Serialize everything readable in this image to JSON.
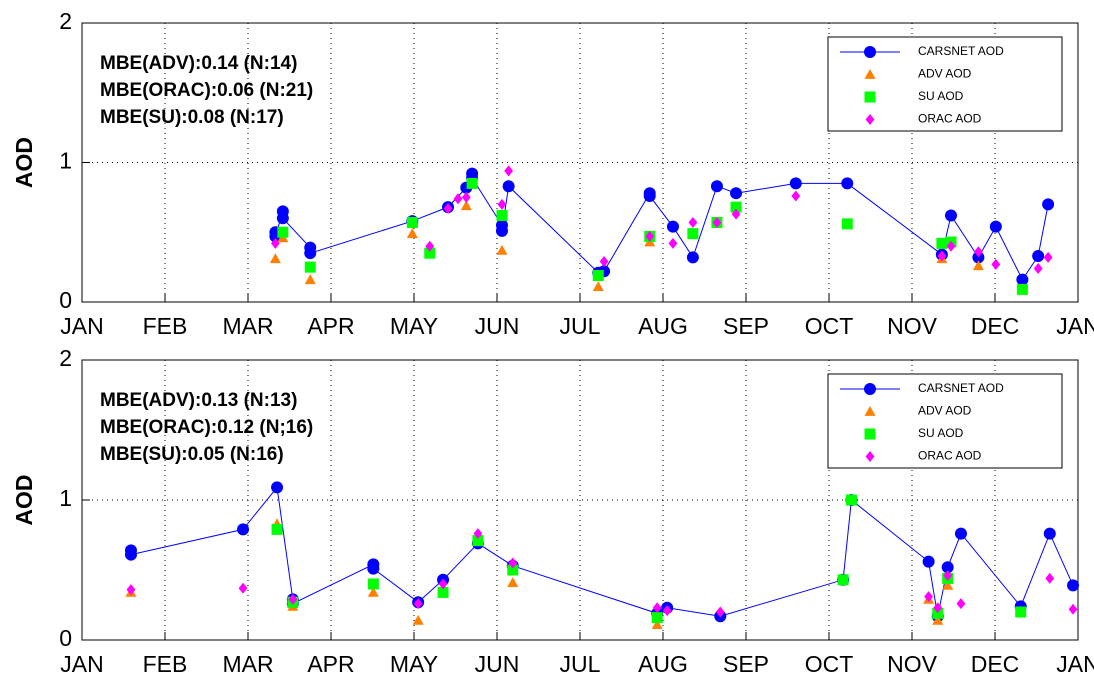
{
  "chart_data": [
    {
      "type": "line",
      "ylabel": "AOD",
      "xlim": [
        0,
        12
      ],
      "ylim": [
        0,
        2
      ],
      "yticks": [
        0,
        1,
        2
      ],
      "xticks": [
        {
          "value": 0,
          "label": "JAN"
        },
        {
          "value": 1,
          "label": "FEB"
        },
        {
          "value": 2,
          "label": "MAR"
        },
        {
          "value": 3,
          "label": "APR"
        },
        {
          "value": 4,
          "label": "MAY"
        },
        {
          "value": 5,
          "label": "JUN"
        },
        {
          "value": 6,
          "label": "JUL"
        },
        {
          "value": 7,
          "label": "AUG"
        },
        {
          "value": 8,
          "label": "SEP"
        },
        {
          "value": 9,
          "label": "OCT"
        },
        {
          "value": 10,
          "label": "NOV"
        },
        {
          "value": 11,
          "label": "DEC"
        },
        {
          "value": 12,
          "label": "JAN"
        }
      ],
      "grid": true,
      "legend": "upper right",
      "annotations": [
        "MBE(ADV):0.14 (N:14)",
        "MBE(ORAC):0.06 (N:21)",
        "MBE(SU):0.08 (N:17)"
      ],
      "series": [
        {
          "name": "CARSNET AOD",
          "color": "#0000ff",
          "marker": "circle",
          "line": true,
          "x": [
            2.33,
            2.33,
            2.42,
            2.42,
            2.75,
            2.75,
            3.98,
            4.41,
            4.63,
            4.7,
            4.7,
            5.06,
            5.06,
            5.14,
            6.22,
            6.29,
            6.84,
            6.84,
            7.12,
            7.36,
            7.65,
            7.88,
            8.6,
            9.22,
            10.36,
            10.47,
            10.8,
            11.01,
            11.33,
            11.52,
            11.64
          ],
          "values": [
            0.5,
            0.47,
            0.65,
            0.6,
            0.39,
            0.35,
            0.58,
            0.68,
            0.82,
            0.92,
            0.89,
            0.55,
            0.51,
            0.83,
            0.21,
            0.22,
            0.78,
            0.76,
            0.54,
            0.32,
            0.83,
            0.78,
            0.85,
            0.85,
            0.34,
            0.62,
            0.32,
            0.54,
            0.16,
            0.33,
            0.7
          ]
        },
        {
          "name": "ADV AOD",
          "color": "#ff8000",
          "marker": "triangle",
          "line": false,
          "x": [
            2.33,
            2.42,
            2.75,
            3.98,
            4.63,
            5.06,
            6.22,
            6.84,
            10.36,
            10.8
          ],
          "values": [
            0.31,
            0.46,
            0.16,
            0.49,
            0.69,
            0.37,
            0.11,
            0.43,
            0.31,
            0.26
          ]
        },
        {
          "name": "SU AOD",
          "color": "#00ff00",
          "marker": "square",
          "line": false,
          "x": [
            2.42,
            2.75,
            3.98,
            4.19,
            4.7,
            5.06,
            6.22,
            6.84,
            7.36,
            7.65,
            7.88,
            9.22,
            10.36,
            10.47,
            11.33
          ],
          "values": [
            0.5,
            0.25,
            0.57,
            0.35,
            0.85,
            0.62,
            0.19,
            0.47,
            0.49,
            0.57,
            0.68,
            0.56,
            0.42,
            0.43,
            0.09
          ]
        },
        {
          "name": "ORAC AOD",
          "color": "#ff00ff",
          "marker": "diamond",
          "line": false,
          "x": [
            2.33,
            4.19,
            4.41,
            4.53,
            4.63,
            5.06,
            5.14,
            6.29,
            6.84,
            7.12,
            7.36,
            7.65,
            7.88,
            8.6,
            10.36,
            10.47,
            10.8,
            11.01,
            11.52,
            11.64
          ],
          "values": [
            0.42,
            0.4,
            0.67,
            0.74,
            0.75,
            0.7,
            0.94,
            0.29,
            0.47,
            0.42,
            0.57,
            0.57,
            0.63,
            0.76,
            0.33,
            0.4,
            0.36,
            0.27,
            0.24,
            0.32
          ]
        }
      ]
    },
    {
      "type": "line",
      "ylabel": "AOD",
      "xlim": [
        0,
        12
      ],
      "ylim": [
        0,
        2
      ],
      "yticks": [
        0,
        1,
        2
      ],
      "xticks": [
        {
          "value": 0,
          "label": "JAN"
        },
        {
          "value": 1,
          "label": "FEB"
        },
        {
          "value": 2,
          "label": "MAR"
        },
        {
          "value": 3,
          "label": "APR"
        },
        {
          "value": 4,
          "label": "MAY"
        },
        {
          "value": 5,
          "label": "JUN"
        },
        {
          "value": 6,
          "label": "JUL"
        },
        {
          "value": 7,
          "label": "AUG"
        },
        {
          "value": 8,
          "label": "SEP"
        },
        {
          "value": 9,
          "label": "OCT"
        },
        {
          "value": 10,
          "label": "NOV"
        },
        {
          "value": 11,
          "label": "DEC"
        },
        {
          "value": 12,
          "label": "JAN"
        }
      ],
      "grid": true,
      "legend": "upper right",
      "annotations": [
        "MBE(ADV):0.13 (N:13)",
        "MBE(ORAC):0.12 (N;16)",
        "MBE(SU):0.05 (N:16)"
      ],
      "series": [
        {
          "name": "CARSNET AOD",
          "color": "#0000ff",
          "marker": "circle",
          "line": true,
          "x": [
            0.59,
            0.59,
            1.94,
            2.35,
            2.54,
            2.54,
            3.51,
            3.51,
            4.05,
            4.35,
            4.77,
            5.19,
            6.93,
            7.05,
            7.69,
            9.17,
            9.27,
            10.2,
            10.31,
            10.43,
            10.59,
            11.31,
            11.66,
            11.94
          ],
          "values": [
            0.64,
            0.61,
            0.79,
            1.09,
            0.29,
            0.26,
            0.54,
            0.51,
            0.27,
            0.43,
            0.69,
            0.53,
            0.19,
            0.23,
            0.17,
            0.43,
            1.0,
            0.56,
            0.17,
            0.52,
            0.76,
            0.24,
            0.76,
            0.39
          ]
        },
        {
          "name": "ADV AOD",
          "color": "#ff8000",
          "marker": "triangle",
          "line": false,
          "x": [
            0.59,
            2.35,
            2.54,
            3.51,
            4.05,
            5.19,
            6.93,
            10.2,
            10.31,
            10.43
          ],
          "values": [
            0.34,
            0.83,
            0.24,
            0.34,
            0.14,
            0.41,
            0.11,
            0.29,
            0.14,
            0.39
          ]
        },
        {
          "name": "SU AOD",
          "color": "#00ff00",
          "marker": "square",
          "line": false,
          "x": [
            2.35,
            2.54,
            3.51,
            4.35,
            4.77,
            5.19,
            6.93,
            9.17,
            9.27,
            10.31,
            10.43,
            11.31
          ],
          "values": [
            0.79,
            0.27,
            0.4,
            0.34,
            0.71,
            0.5,
            0.16,
            0.43,
            1.0,
            0.19,
            0.44,
            0.2
          ]
        },
        {
          "name": "ORAC AOD",
          "color": "#ff00ff",
          "marker": "diamond",
          "line": false,
          "x": [
            0.59,
            1.94,
            2.54,
            4.05,
            4.35,
            4.77,
            5.19,
            6.93,
            7.05,
            7.69,
            10.2,
            10.31,
            10.43,
            10.59,
            11.66,
            11.94
          ],
          "values": [
            0.36,
            0.37,
            0.29,
            0.26,
            0.4,
            0.76,
            0.55,
            0.23,
            0.21,
            0.2,
            0.31,
            0.23,
            0.46,
            0.26,
            0.44,
            0.22
          ]
        }
      ]
    }
  ]
}
